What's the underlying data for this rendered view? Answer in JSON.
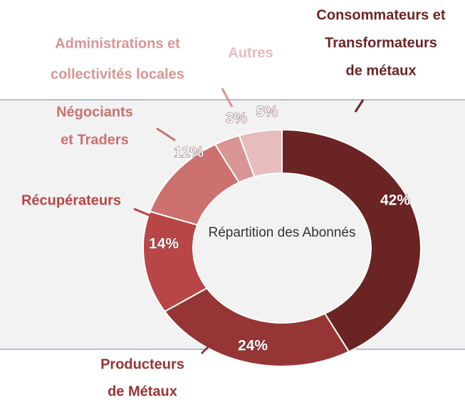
{
  "chart_data": {
    "type": "donut",
    "center_label": "Répartition des Abonnés",
    "categories": [
      [
        "Consommateurs et",
        "Transformateurs",
        "de métaux"
      ],
      [
        "Producteurs",
        "de Métaux"
      ],
      [
        "Récupérateurs"
      ],
      [
        "Négociants",
        "et Traders"
      ],
      [
        "Administrations et",
        "collectivités locales"
      ],
      [
        "Autres"
      ]
    ],
    "values": [
      42,
      24,
      14,
      12,
      3,
      5
    ],
    "value_labels": [
      "42%",
      "24%",
      "14%",
      "12%",
      "3%",
      "5%"
    ],
    "colors": [
      "#6b2424",
      "#953535",
      "#b84646",
      "#cc7070",
      "#d99494",
      "#e6bcbc"
    ]
  }
}
